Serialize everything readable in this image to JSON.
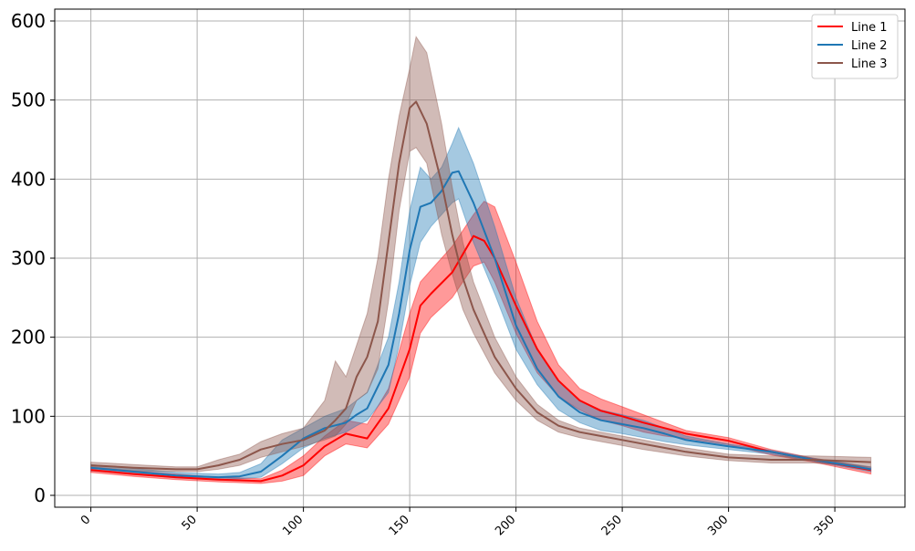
{
  "chart_data": {
    "type": "line",
    "title": "",
    "xlabel": "",
    "ylabel": "",
    "xlim": [
      -17,
      383
    ],
    "ylim": [
      -15,
      615
    ],
    "xticks": [
      0,
      50,
      100,
      150,
      200,
      250,
      300,
      350
    ],
    "yticks": [
      0,
      100,
      200,
      300,
      400,
      500,
      600
    ],
    "grid": true,
    "legend_position": "top-right",
    "series": [
      {
        "name": "Line 1",
        "color": "#ff0000",
        "points": [
          [
            0,
            32
          ],
          [
            20,
            27
          ],
          [
            40,
            23
          ],
          [
            60,
            20
          ],
          [
            70,
            19
          ],
          [
            80,
            18
          ],
          [
            90,
            25
          ],
          [
            100,
            38
          ],
          [
            110,
            62
          ],
          [
            120,
            78
          ],
          [
            130,
            72
          ],
          [
            140,
            110
          ],
          [
            150,
            185
          ],
          [
            155,
            240
          ],
          [
            160,
            255
          ],
          [
            170,
            282
          ],
          [
            180,
            328
          ],
          [
            185,
            322
          ],
          [
            190,
            300
          ],
          [
            200,
            240
          ],
          [
            210,
            185
          ],
          [
            220,
            145
          ],
          [
            230,
            120
          ],
          [
            240,
            107
          ],
          [
            250,
            100
          ],
          [
            260,
            92
          ],
          [
            270,
            85
          ],
          [
            280,
            78
          ],
          [
            300,
            69
          ],
          [
            320,
            55
          ],
          [
            340,
            45
          ],
          [
            367,
            32
          ]
        ],
        "upper": [
          [
            0,
            36
          ],
          [
            20,
            31
          ],
          [
            40,
            27
          ],
          [
            60,
            23
          ],
          [
            70,
            22
          ],
          [
            80,
            21
          ],
          [
            90,
            32
          ],
          [
            100,
            50
          ],
          [
            110,
            75
          ],
          [
            120,
            95
          ],
          [
            130,
            90
          ],
          [
            140,
            135
          ],
          [
            150,
            230
          ],
          [
            155,
            270
          ],
          [
            160,
            285
          ],
          [
            170,
            315
          ],
          [
            180,
            355
          ],
          [
            185,
            372
          ],
          [
            190,
            365
          ],
          [
            200,
            295
          ],
          [
            210,
            220
          ],
          [
            220,
            165
          ],
          [
            230,
            135
          ],
          [
            240,
            122
          ],
          [
            250,
            112
          ],
          [
            260,
            102
          ],
          [
            270,
            92
          ],
          [
            280,
            82
          ],
          [
            300,
            73
          ],
          [
            320,
            58
          ],
          [
            340,
            47
          ],
          [
            367,
            35
          ]
        ],
        "lower": [
          [
            0,
            29
          ],
          [
            20,
            24
          ],
          [
            40,
            20
          ],
          [
            60,
            17
          ],
          [
            70,
            16
          ],
          [
            80,
            15
          ],
          [
            90,
            18
          ],
          [
            100,
            25
          ],
          [
            110,
            50
          ],
          [
            120,
            65
          ],
          [
            130,
            60
          ],
          [
            140,
            90
          ],
          [
            150,
            150
          ],
          [
            155,
            205
          ],
          [
            160,
            225
          ],
          [
            170,
            250
          ],
          [
            180,
            290
          ],
          [
            185,
            295
          ],
          [
            190,
            270
          ],
          [
            200,
            205
          ],
          [
            210,
            155
          ],
          [
            220,
            125
          ],
          [
            230,
            108
          ],
          [
            240,
            95
          ],
          [
            250,
            88
          ],
          [
            260,
            80
          ],
          [
            270,
            75
          ],
          [
            280,
            72
          ],
          [
            300,
            64
          ],
          [
            320,
            51
          ],
          [
            340,
            42
          ],
          [
            367,
            27
          ]
        ]
      },
      {
        "name": "Line 2",
        "color": "#1f77b4",
        "points": [
          [
            0,
            35
          ],
          [
            20,
            30
          ],
          [
            40,
            25
          ],
          [
            60,
            23
          ],
          [
            70,
            24
          ],
          [
            80,
            30
          ],
          [
            90,
            50
          ],
          [
            100,
            72
          ],
          [
            110,
            85
          ],
          [
            120,
            92
          ],
          [
            125,
            102
          ],
          [
            130,
            110
          ],
          [
            140,
            165
          ],
          [
            145,
            230
          ],
          [
            150,
            310
          ],
          [
            155,
            365
          ],
          [
            160,
            370
          ],
          [
            165,
            385
          ],
          [
            170,
            408
          ],
          [
            173,
            410
          ],
          [
            180,
            370
          ],
          [
            190,
            300
          ],
          [
            200,
            215
          ],
          [
            210,
            160
          ],
          [
            220,
            125
          ],
          [
            230,
            105
          ],
          [
            240,
            95
          ],
          [
            250,
            90
          ],
          [
            260,
            85
          ],
          [
            270,
            78
          ],
          [
            280,
            70
          ],
          [
            300,
            62
          ],
          [
            320,
            55
          ],
          [
            340,
            45
          ],
          [
            367,
            33
          ]
        ],
        "upper": [
          [
            0,
            39
          ],
          [
            20,
            34
          ],
          [
            40,
            29
          ],
          [
            60,
            27
          ],
          [
            70,
            29
          ],
          [
            80,
            40
          ],
          [
            90,
            70
          ],
          [
            100,
            85
          ],
          [
            110,
            100
          ],
          [
            120,
            110
          ],
          [
            125,
            120
          ],
          [
            130,
            130
          ],
          [
            140,
            200
          ],
          [
            145,
            270
          ],
          [
            150,
            360
          ],
          [
            155,
            415
          ],
          [
            160,
            400
          ],
          [
            165,
            415
          ],
          [
            170,
            445
          ],
          [
            173,
            465
          ],
          [
            180,
            420
          ],
          [
            190,
            340
          ],
          [
            200,
            250
          ],
          [
            210,
            185
          ],
          [
            220,
            145
          ],
          [
            230,
            120
          ],
          [
            240,
            108
          ],
          [
            250,
            102
          ],
          [
            260,
            95
          ],
          [
            270,
            85
          ],
          [
            280,
            75
          ],
          [
            300,
            65
          ],
          [
            320,
            57
          ],
          [
            340,
            47
          ],
          [
            367,
            36
          ]
        ],
        "lower": [
          [
            0,
            31
          ],
          [
            20,
            27
          ],
          [
            40,
            22
          ],
          [
            60,
            20
          ],
          [
            70,
            21
          ],
          [
            80,
            23
          ],
          [
            90,
            40
          ],
          [
            100,
            60
          ],
          [
            110,
            72
          ],
          [
            120,
            80
          ],
          [
            125,
            88
          ],
          [
            130,
            95
          ],
          [
            140,
            130
          ],
          [
            145,
            190
          ],
          [
            150,
            265
          ],
          [
            155,
            320
          ],
          [
            160,
            340
          ],
          [
            165,
            355
          ],
          [
            170,
            370
          ],
          [
            173,
            375
          ],
          [
            180,
            320
          ],
          [
            190,
            255
          ],
          [
            200,
            185
          ],
          [
            210,
            140
          ],
          [
            220,
            108
          ],
          [
            230,
            92
          ],
          [
            240,
            82
          ],
          [
            250,
            78
          ],
          [
            260,
            73
          ],
          [
            270,
            68
          ],
          [
            280,
            64
          ],
          [
            300,
            58
          ],
          [
            320,
            52
          ],
          [
            340,
            43
          ],
          [
            367,
            30
          ]
        ]
      },
      {
        "name": "Line 3",
        "color": "#8c564b",
        "points": [
          [
            0,
            38
          ],
          [
            20,
            35
          ],
          [
            40,
            33
          ],
          [
            50,
            33
          ],
          [
            60,
            38
          ],
          [
            70,
            45
          ],
          [
            80,
            58
          ],
          [
            90,
            65
          ],
          [
            100,
            70
          ],
          [
            110,
            82
          ],
          [
            115,
            95
          ],
          [
            120,
            110
          ],
          [
            125,
            150
          ],
          [
            130,
            175
          ],
          [
            135,
            220
          ],
          [
            140,
            320
          ],
          [
            145,
            420
          ],
          [
            150,
            490
          ],
          [
            153,
            498
          ],
          [
            158,
            470
          ],
          [
            165,
            395
          ],
          [
            170,
            330
          ],
          [
            175,
            275
          ],
          [
            180,
            235
          ],
          [
            190,
            175
          ],
          [
            200,
            135
          ],
          [
            210,
            105
          ],
          [
            220,
            88
          ],
          [
            230,
            80
          ],
          [
            240,
            75
          ],
          [
            250,
            70
          ],
          [
            260,
            65
          ],
          [
            270,
            60
          ],
          [
            280,
            55
          ],
          [
            300,
            48
          ],
          [
            320,
            45
          ],
          [
            340,
            45
          ],
          [
            367,
            42
          ]
        ],
        "upper": [
          [
            0,
            42
          ],
          [
            20,
            39
          ],
          [
            40,
            36
          ],
          [
            50,
            36
          ],
          [
            60,
            45
          ],
          [
            70,
            52
          ],
          [
            80,
            68
          ],
          [
            90,
            78
          ],
          [
            100,
            85
          ],
          [
            110,
            120
          ],
          [
            115,
            170
          ],
          [
            120,
            150
          ],
          [
            125,
            190
          ],
          [
            130,
            230
          ],
          [
            135,
            300
          ],
          [
            140,
            400
          ],
          [
            145,
            480
          ],
          [
            150,
            540
          ],
          [
            153,
            580
          ],
          [
            158,
            560
          ],
          [
            165,
            470
          ],
          [
            170,
            390
          ],
          [
            175,
            320
          ],
          [
            180,
            270
          ],
          [
            190,
            200
          ],
          [
            200,
            150
          ],
          [
            210,
            115
          ],
          [
            220,
            95
          ],
          [
            230,
            85
          ],
          [
            240,
            80
          ],
          [
            250,
            75
          ],
          [
            260,
            70
          ],
          [
            270,
            65
          ],
          [
            280,
            60
          ],
          [
            300,
            52
          ],
          [
            320,
            50
          ],
          [
            340,
            50
          ],
          [
            367,
            48
          ]
        ],
        "lower": [
          [
            0,
            34
          ],
          [
            20,
            31
          ],
          [
            40,
            30
          ],
          [
            50,
            30
          ],
          [
            60,
            33
          ],
          [
            70,
            38
          ],
          [
            80,
            48
          ],
          [
            90,
            55
          ],
          [
            100,
            62
          ],
          [
            110,
            70
          ],
          [
            115,
            75
          ],
          [
            120,
            90
          ],
          [
            125,
            120
          ],
          [
            130,
            130
          ],
          [
            135,
            160
          ],
          [
            140,
            245
          ],
          [
            145,
            360
          ],
          [
            150,
            435
          ],
          [
            153,
            440
          ],
          [
            158,
            420
          ],
          [
            165,
            330
          ],
          [
            170,
            280
          ],
          [
            175,
            235
          ],
          [
            180,
            205
          ],
          [
            190,
            155
          ],
          [
            200,
            120
          ],
          [
            210,
            95
          ],
          [
            220,
            80
          ],
          [
            230,
            73
          ],
          [
            240,
            68
          ],
          [
            250,
            63
          ],
          [
            260,
            58
          ],
          [
            270,
            54
          ],
          [
            280,
            50
          ],
          [
            300,
            44
          ],
          [
            320,
            41
          ],
          [
            340,
            41
          ],
          [
            367,
            36
          ]
        ]
      }
    ]
  }
}
